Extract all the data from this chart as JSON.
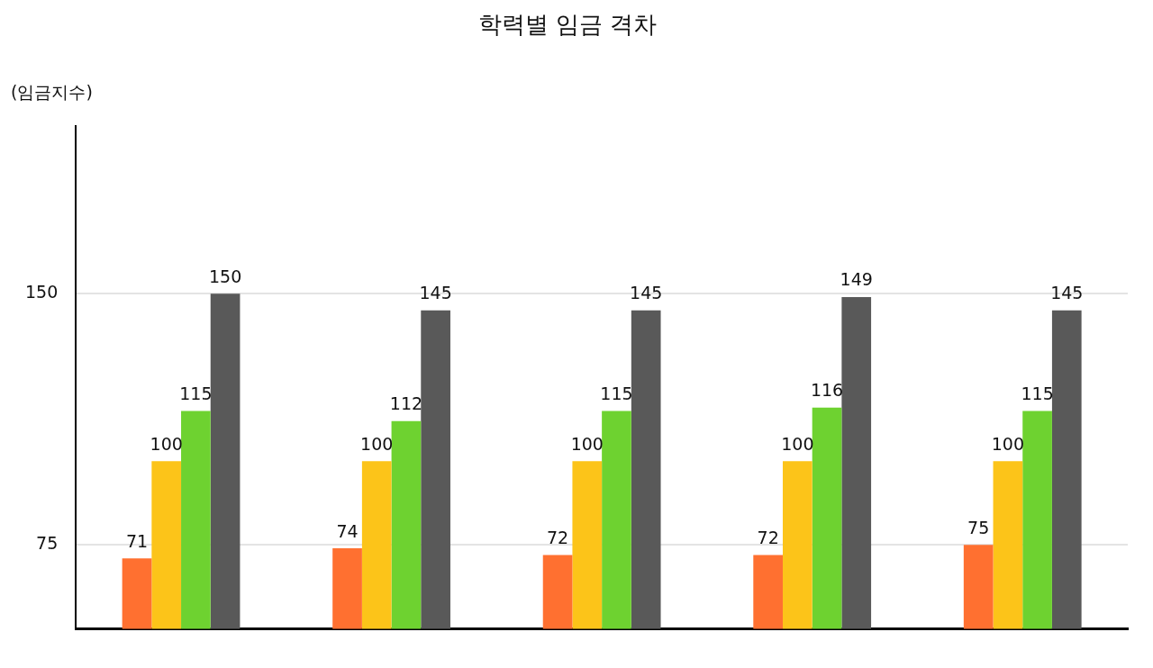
{
  "chart_data": {
    "type": "bar",
    "title": "학력별 임금 격차",
    "ylabel": "(임금지수)",
    "categories": [
      null,
      null,
      null,
      null,
      null
    ],
    "series": [
      {
        "color": "#ff7030",
        "values": [
          71,
          74,
          72,
          72,
          75
        ]
      },
      {
        "color": "#fcc419",
        "values": [
          100,
          100,
          100,
          100,
          100
        ]
      },
      {
        "color": "#6ed230",
        "values": [
          115,
          112,
          115,
          116,
          115
        ]
      },
      {
        "color": "#595959",
        "values": [
          150,
          145,
          145,
          149,
          145
        ]
      }
    ],
    "ylim": [
      50,
      200
    ],
    "yticks": [
      75,
      150
    ],
    "grid": "y",
    "legend": false,
    "data_labels": true
  }
}
